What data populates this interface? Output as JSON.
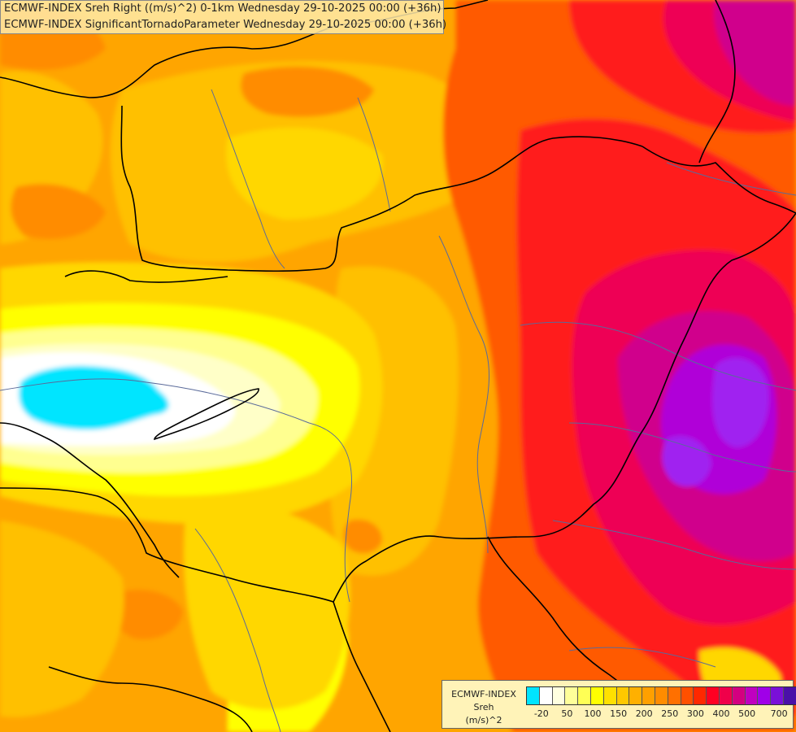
{
  "title": {
    "line1": "ECMWF-INDEX Sreh Right ((m/s)^2) 0-1km Wednesday 29-10-2025 00:00 (+36h)",
    "line2": "ECMWF-INDEX SignificantTornadoParameter Wednesday 29-10-2025 00:00 (+36h)"
  },
  "legend": {
    "source": "ECMWF-INDEX",
    "parameter": "Sreh",
    "unit": "(m/s)^2",
    "colors": [
      "#00e5ff",
      "#ffffff",
      "#ffffe0",
      "#ffff99",
      "#ffff55",
      "#ffff00",
      "#ffe000",
      "#ffc800",
      "#ffb000",
      "#ffa000",
      "#ff8c00",
      "#ff7000",
      "#ff5000",
      "#ff2800",
      "#ff0022",
      "#f0004a",
      "#d40080",
      "#c000c0",
      "#a000e8",
      "#7a10d8",
      "#4a10a8",
      "#101080"
    ],
    "tick_labels": [
      "-20",
      "50",
      "100",
      "150",
      "200",
      "250",
      "300",
      "400",
      "500",
      "700"
    ]
  },
  "map": {
    "palette": {
      "cyan": "#00e5ff",
      "white": "#ffffff",
      "cream": "#ffffc8",
      "pale_yellow": "#ffff90",
      "yellow": "#ffff00",
      "gold": "#ffd700",
      "amber": "#ffc000",
      "orange": "#ffa500",
      "dark_orange": "#ff8c00",
      "red_orange": "#ff5a00",
      "red": "#ff1a1a",
      "crimson": "#ee0055",
      "magenta": "#d0008c",
      "violet": "#b000d8",
      "purple": "#a020f0",
      "border": "#000000",
      "river": "#5a6a9a"
    }
  }
}
